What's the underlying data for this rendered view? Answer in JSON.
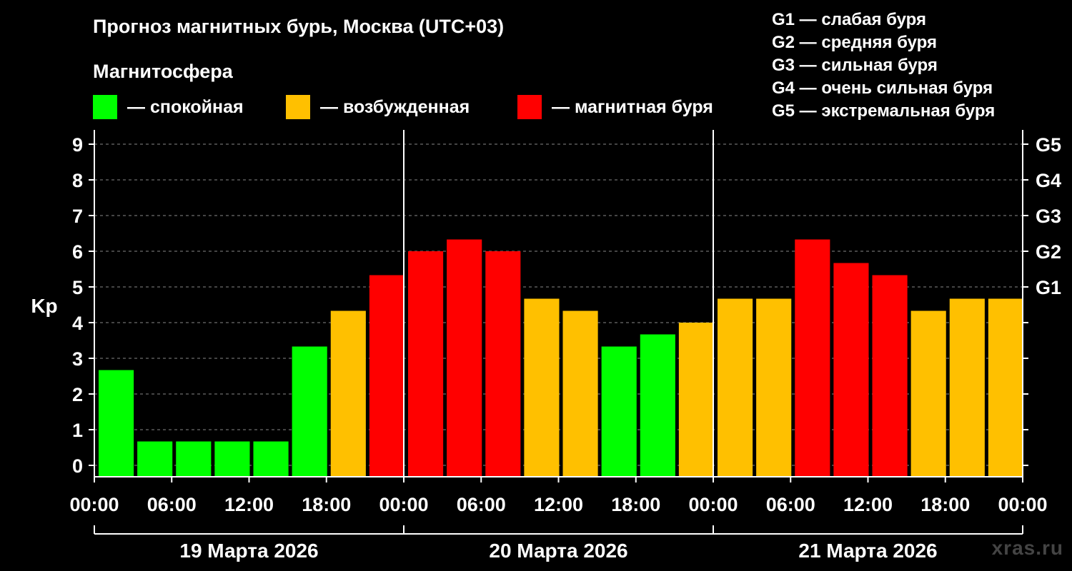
{
  "title": "Прогноз магнитных бурь, Москва (UTC+03)",
  "subtitle": "Магнитосфера",
  "legend": [
    {
      "label": "— спокойная",
      "color": "#00ff00"
    },
    {
      "label": "— возбужденная",
      "color": "#ffc000"
    },
    {
      "label": "— магнитная буря",
      "color": "#ff0000"
    }
  ],
  "g_scale": [
    "G1 — слабая буря",
    "G2 — средняя буря",
    "G3 — сильная буря",
    "G4 — очень сильная буря",
    "G5 — экстремальная буря"
  ],
  "watermark": "xras.ru",
  "chart_data": {
    "type": "bar",
    "ylabel": "Kp",
    "ylim": [
      0,
      9
    ],
    "yticks": [
      0,
      1,
      2,
      3,
      4,
      5,
      6,
      7,
      8,
      9
    ],
    "y2ticks": [
      {
        "value": 5,
        "label": "G1"
      },
      {
        "value": 6,
        "label": "G2"
      },
      {
        "value": 7,
        "label": "G3"
      },
      {
        "value": 8,
        "label": "G4"
      },
      {
        "value": 9,
        "label": "G5"
      }
    ],
    "grid": true,
    "xtick_labels": [
      "00:00",
      "06:00",
      "12:00",
      "18:00",
      "00:00",
      "06:00",
      "12:00",
      "18:00",
      "00:00",
      "06:00",
      "12:00",
      "18:00",
      "00:00"
    ],
    "days": [
      "19 Марта 2026",
      "20 Марта 2026",
      "21 Марта 2026"
    ],
    "values": [
      2.67,
      0.67,
      0.67,
      0.67,
      0.67,
      3.33,
      4.33,
      5.33,
      6.0,
      6.33,
      6.0,
      4.67,
      4.33,
      3.33,
      3.67,
      4.0,
      4.67,
      4.67,
      6.33,
      5.67,
      5.33,
      4.33,
      4.67,
      4.67
    ],
    "levels": [
      "quiet",
      "quiet",
      "quiet",
      "quiet",
      "quiet",
      "quiet",
      "active",
      "storm",
      "storm",
      "storm",
      "storm",
      "active",
      "active",
      "quiet",
      "quiet",
      "active",
      "active",
      "active",
      "storm",
      "storm",
      "storm",
      "active",
      "active",
      "active"
    ],
    "level_colors": {
      "quiet": "#00ff00",
      "active": "#ffc000",
      "storm": "#ff0000"
    }
  }
}
